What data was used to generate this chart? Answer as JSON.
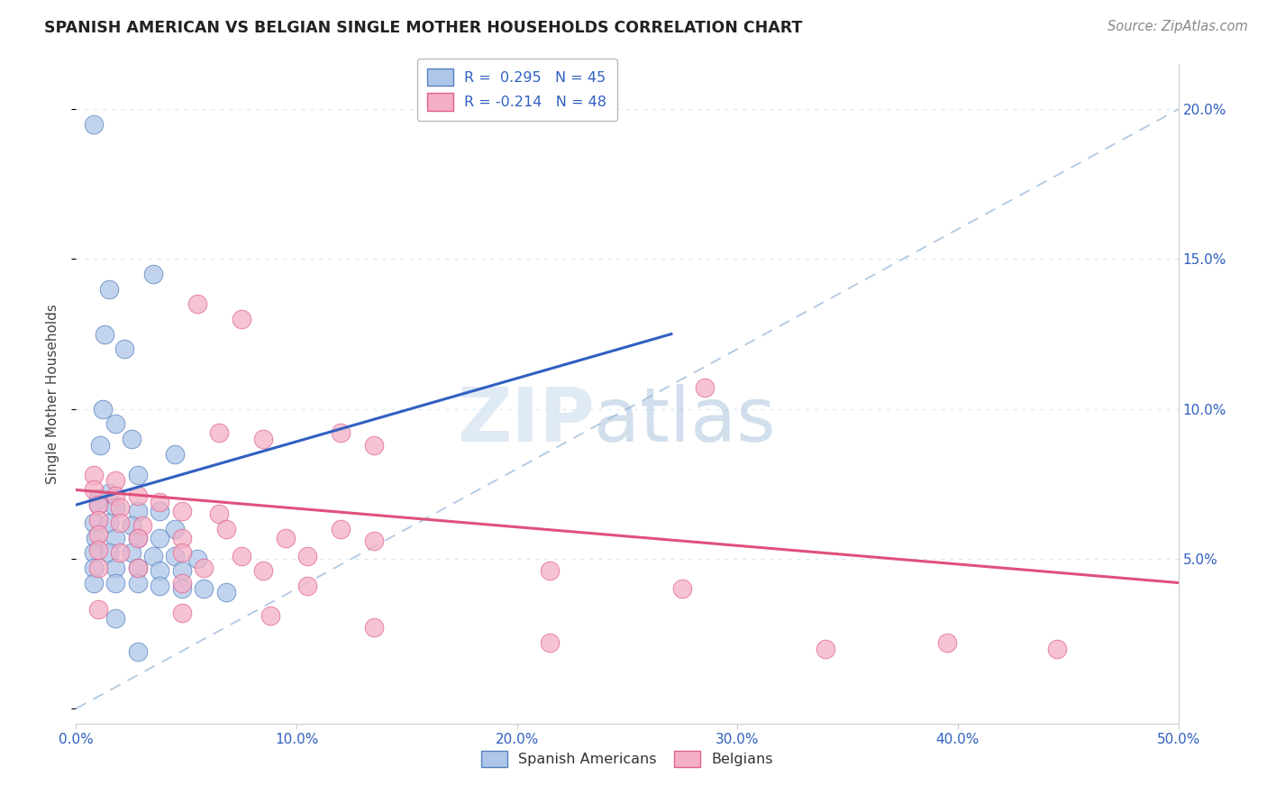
{
  "title": "SPANISH AMERICAN VS BELGIAN SINGLE MOTHER HOUSEHOLDS CORRELATION CHART",
  "source": "Source: ZipAtlas.com",
  "ylabel": "Single Mother Households",
  "yticks": [
    0.0,
    0.05,
    0.1,
    0.15,
    0.2
  ],
  "ytick_labels": [
    "",
    "5.0%",
    "10.0%",
    "15.0%",
    "20.0%"
  ],
  "xlim": [
    0.0,
    0.5
  ],
  "ylim": [
    -0.005,
    0.215
  ],
  "xticks": [
    0.0,
    0.1,
    0.2,
    0.3,
    0.4,
    0.5
  ],
  "xtick_labels": [
    "0.0%",
    "10.0%",
    "20.0%",
    "30.0%",
    "40.0%",
    "50.0%"
  ],
  "legend_entry1": "R =  0.295   N = 45",
  "legend_entry2": "R = -0.214   N = 48",
  "legend_label1": "Spanish Americans",
  "legend_label2": "Belgians",
  "blue_color": "#aec6e8",
  "pink_color": "#f4afc5",
  "blue_edge_color": "#5580c0",
  "pink_edge_color": "#e06090",
  "blue_line_color": "#3060c0",
  "pink_line_color": "#e0507a",
  "dashed_line_color": "#b0c8e0",
  "watermark_zip": "ZIP",
  "watermark_atlas": "atlas",
  "blue_R": 0.295,
  "blue_N": 45,
  "pink_R": -0.214,
  "pink_N": 48,
  "blue_points": [
    [
      0.008,
      0.195
    ],
    [
      0.015,
      0.14
    ],
    [
      0.035,
      0.145
    ],
    [
      0.013,
      0.125
    ],
    [
      0.022,
      0.12
    ],
    [
      0.025,
      0.09
    ],
    [
      0.045,
      0.085
    ],
    [
      0.012,
      0.1
    ],
    [
      0.018,
      0.095
    ],
    [
      0.011,
      0.088
    ],
    [
      0.028,
      0.078
    ],
    [
      0.015,
      0.072
    ],
    [
      0.01,
      0.07
    ],
    [
      0.01,
      0.068
    ],
    [
      0.018,
      0.067
    ],
    [
      0.028,
      0.066
    ],
    [
      0.038,
      0.066
    ],
    [
      0.008,
      0.062
    ],
    [
      0.015,
      0.062
    ],
    [
      0.025,
      0.061
    ],
    [
      0.045,
      0.06
    ],
    [
      0.009,
      0.057
    ],
    [
      0.018,
      0.057
    ],
    [
      0.028,
      0.057
    ],
    [
      0.038,
      0.057
    ],
    [
      0.008,
      0.052
    ],
    [
      0.015,
      0.052
    ],
    [
      0.025,
      0.052
    ],
    [
      0.035,
      0.051
    ],
    [
      0.045,
      0.051
    ],
    [
      0.055,
      0.05
    ],
    [
      0.008,
      0.047
    ],
    [
      0.018,
      0.047
    ],
    [
      0.028,
      0.047
    ],
    [
      0.038,
      0.046
    ],
    [
      0.048,
      0.046
    ],
    [
      0.008,
      0.042
    ],
    [
      0.018,
      0.042
    ],
    [
      0.028,
      0.042
    ],
    [
      0.038,
      0.041
    ],
    [
      0.048,
      0.04
    ],
    [
      0.058,
      0.04
    ],
    [
      0.068,
      0.039
    ],
    [
      0.018,
      0.03
    ],
    [
      0.028,
      0.019
    ]
  ],
  "pink_points": [
    [
      0.008,
      0.078
    ],
    [
      0.018,
      0.076
    ],
    [
      0.055,
      0.135
    ],
    [
      0.075,
      0.13
    ],
    [
      0.065,
      0.092
    ],
    [
      0.085,
      0.09
    ],
    [
      0.12,
      0.092
    ],
    [
      0.135,
      0.088
    ],
    [
      0.008,
      0.073
    ],
    [
      0.018,
      0.071
    ],
    [
      0.028,
      0.071
    ],
    [
      0.038,
      0.069
    ],
    [
      0.01,
      0.068
    ],
    [
      0.02,
      0.067
    ],
    [
      0.048,
      0.066
    ],
    [
      0.065,
      0.065
    ],
    [
      0.01,
      0.063
    ],
    [
      0.02,
      0.062
    ],
    [
      0.03,
      0.061
    ],
    [
      0.068,
      0.06
    ],
    [
      0.12,
      0.06
    ],
    [
      0.01,
      0.058
    ],
    [
      0.028,
      0.057
    ],
    [
      0.048,
      0.057
    ],
    [
      0.095,
      0.057
    ],
    [
      0.135,
      0.056
    ],
    [
      0.01,
      0.053
    ],
    [
      0.02,
      0.052
    ],
    [
      0.048,
      0.052
    ],
    [
      0.075,
      0.051
    ],
    [
      0.105,
      0.051
    ],
    [
      0.01,
      0.047
    ],
    [
      0.028,
      0.047
    ],
    [
      0.058,
      0.047
    ],
    [
      0.085,
      0.046
    ],
    [
      0.215,
      0.046
    ],
    [
      0.048,
      0.042
    ],
    [
      0.105,
      0.041
    ],
    [
      0.275,
      0.04
    ],
    [
      0.01,
      0.033
    ],
    [
      0.048,
      0.032
    ],
    [
      0.088,
      0.031
    ],
    [
      0.135,
      0.027
    ],
    [
      0.215,
      0.022
    ],
    [
      0.34,
      0.02
    ],
    [
      0.445,
      0.02
    ],
    [
      0.285,
      0.107
    ],
    [
      0.395,
      0.022
    ]
  ],
  "blue_line_x0": 0.0,
  "blue_line_x1": 0.27,
  "blue_line_y0": 0.068,
  "blue_line_y1": 0.125,
  "pink_line_x0": 0.0,
  "pink_line_x1": 0.5,
  "pink_line_y0": 0.073,
  "pink_line_y1": 0.042,
  "dash_line_x0": 0.0,
  "dash_line_x1": 0.5,
  "dash_line_y0": 0.0,
  "dash_line_y1": 0.2,
  "grid_color": "#d8e8f0",
  "spine_color": "#cccccc",
  "tick_color": "#3060c0",
  "title_color": "#222222",
  "source_color": "#888888",
  "ylabel_color": "#444444"
}
